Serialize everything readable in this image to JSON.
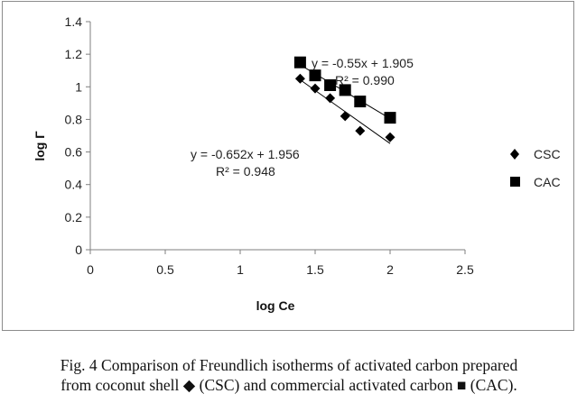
{
  "chart_data": {
    "type": "scatter",
    "xlabel": "log Ce",
    "ylabel": "log Γ",
    "xlim": [
      0,
      2.5
    ],
    "ylim": [
      0,
      1.4
    ],
    "xticks": [
      "0",
      "0.5",
      "1",
      "1.5",
      "2",
      "2.5"
    ],
    "yticks": [
      "0",
      "0.2",
      "0.4",
      "0.6",
      "0.8",
      "1",
      "1.2",
      "1.4"
    ],
    "grid": false,
    "legend_position": "right",
    "series": [
      {
        "name": "CSC",
        "marker": "diamond",
        "color": "#000000",
        "x": [
          1.4,
          1.5,
          1.6,
          1.7,
          1.8,
          2.0
        ],
        "y": [
          1.05,
          0.99,
          0.93,
          0.82,
          0.73,
          0.69
        ],
        "trendline": {
          "slope": -0.652,
          "intercept": 1.956,
          "x_range": [
            1.4,
            2.0
          ]
        },
        "equation": "y = -0.652x + 1.956",
        "r2_label": "R² = 0.948"
      },
      {
        "name": "CAC",
        "marker": "square",
        "color": "#000000",
        "x": [
          1.4,
          1.5,
          1.6,
          1.7,
          1.8,
          2.0
        ],
        "y": [
          1.15,
          1.07,
          1.01,
          0.98,
          0.91,
          0.81
        ],
        "trendline": {
          "slope": -0.55,
          "intercept": 1.905,
          "x_range": [
            1.4,
            2.0
          ]
        },
        "equation": "y = -0.55x + 1.905",
        "r2_label": "R² = 0.990"
      }
    ]
  },
  "caption": {
    "line1": "Fig. 4 Comparison of Freundlich isotherms of activated carbon prepared",
    "line2": "from coconut shell ◆ (CSC) and commercial activated carbon ■ (CAC)."
  }
}
